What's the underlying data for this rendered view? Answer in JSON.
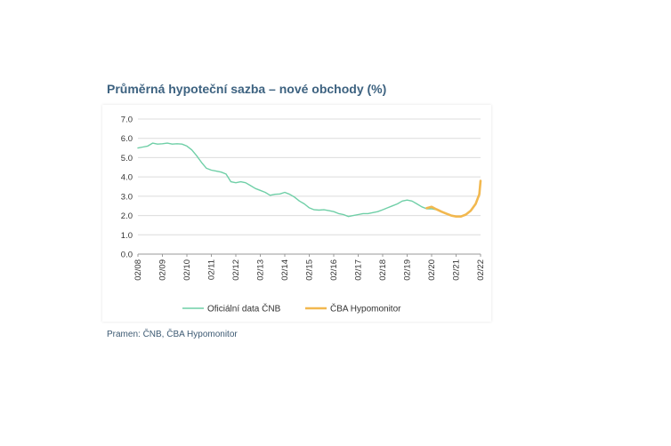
{
  "chart_data": {
    "type": "line",
    "title": "Průměrná hypoteční sazba – nové obchody (%)",
    "source": "Pramen: ČNB, ČBA Hypomonitor",
    "x_ticks": [
      "02/08",
      "02/09",
      "02/10",
      "02/11",
      "02/12",
      "02/13",
      "02/14",
      "02/15",
      "02/16",
      "02/17",
      "02/18",
      "02/19",
      "02/20",
      "02/21",
      "02/22"
    ],
    "y_ticks": [
      "7.0",
      "6.0",
      "5.0",
      "4.0",
      "3.0",
      "2.0",
      "1.0",
      "0.0"
    ],
    "ylim": [
      0,
      7
    ],
    "grid": true,
    "legend_position": "bottom",
    "series": [
      {
        "name": "Oficiální data ČNB",
        "color": "#6fcfa7",
        "points": [
          [
            2008.0,
            5.5
          ],
          [
            2008.2,
            5.55
          ],
          [
            2008.4,
            5.6
          ],
          [
            2008.6,
            5.75
          ],
          [
            2008.8,
            5.7
          ],
          [
            2009.0,
            5.72
          ],
          [
            2009.2,
            5.75
          ],
          [
            2009.4,
            5.7
          ],
          [
            2009.6,
            5.72
          ],
          [
            2009.8,
            5.7
          ],
          [
            2010.0,
            5.6
          ],
          [
            2010.2,
            5.4
          ],
          [
            2010.4,
            5.1
          ],
          [
            2010.6,
            4.75
          ],
          [
            2010.8,
            4.45
          ],
          [
            2011.0,
            4.35
          ],
          [
            2011.2,
            4.3
          ],
          [
            2011.4,
            4.25
          ],
          [
            2011.6,
            4.15
          ],
          [
            2011.8,
            3.75
          ],
          [
            2012.0,
            3.7
          ],
          [
            2012.2,
            3.75
          ],
          [
            2012.4,
            3.7
          ],
          [
            2012.6,
            3.55
          ],
          [
            2012.8,
            3.4
          ],
          [
            2013.0,
            3.3
          ],
          [
            2013.2,
            3.2
          ],
          [
            2013.4,
            3.05
          ],
          [
            2013.6,
            3.1
          ],
          [
            2013.8,
            3.12
          ],
          [
            2014.0,
            3.2
          ],
          [
            2014.2,
            3.1
          ],
          [
            2014.4,
            2.95
          ],
          [
            2014.6,
            2.75
          ],
          [
            2014.8,
            2.6
          ],
          [
            2015.0,
            2.4
          ],
          [
            2015.2,
            2.3
          ],
          [
            2015.4,
            2.28
          ],
          [
            2015.6,
            2.3
          ],
          [
            2015.8,
            2.25
          ],
          [
            2016.0,
            2.2
          ],
          [
            2016.2,
            2.1
          ],
          [
            2016.4,
            2.05
          ],
          [
            2016.6,
            1.95
          ],
          [
            2016.8,
            2.0
          ],
          [
            2017.0,
            2.05
          ],
          [
            2017.2,
            2.1
          ],
          [
            2017.4,
            2.1
          ],
          [
            2017.6,
            2.15
          ],
          [
            2017.8,
            2.2
          ],
          [
            2018.0,
            2.3
          ],
          [
            2018.2,
            2.4
          ],
          [
            2018.4,
            2.5
          ],
          [
            2018.6,
            2.6
          ],
          [
            2018.8,
            2.75
          ],
          [
            2019.0,
            2.8
          ],
          [
            2019.2,
            2.75
          ],
          [
            2019.4,
            2.6
          ],
          [
            2019.6,
            2.45
          ],
          [
            2019.8,
            2.35
          ],
          [
            2020.0,
            2.35
          ],
          [
            2020.2,
            2.3
          ]
        ]
      },
      {
        "name": "ČBA Hypomonitor",
        "color": "#f2b84f",
        "points": [
          [
            2019.8,
            2.38
          ],
          [
            2020.0,
            2.45
          ],
          [
            2020.2,
            2.32
          ],
          [
            2020.4,
            2.2
          ],
          [
            2020.6,
            2.1
          ],
          [
            2020.8,
            2.0
          ],
          [
            2021.0,
            1.95
          ],
          [
            2021.2,
            1.95
          ],
          [
            2021.4,
            2.05
          ],
          [
            2021.6,
            2.25
          ],
          [
            2021.8,
            2.6
          ],
          [
            2021.95,
            3.1
          ],
          [
            2022.0,
            3.8
          ]
        ]
      }
    ]
  }
}
